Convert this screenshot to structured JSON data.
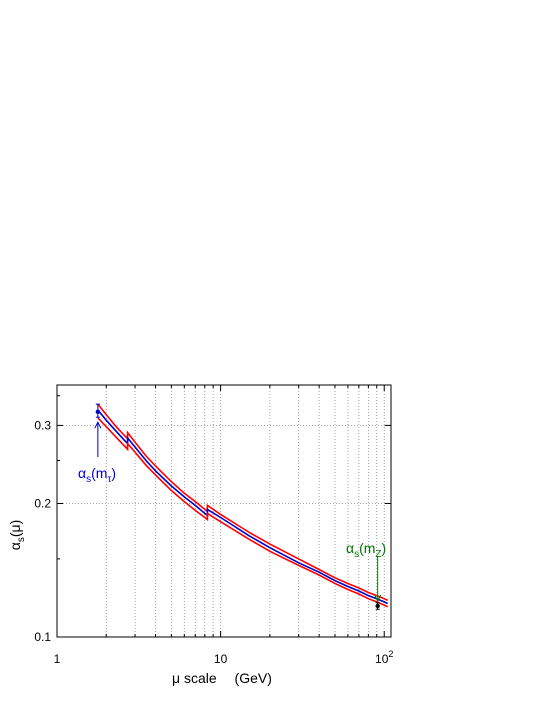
{
  "chart_data": {
    "type": "line",
    "x_scale": "log",
    "y_scale": "log",
    "xlim": [
      1,
      110
    ],
    "ylim": [
      0.1,
      0.37
    ],
    "grid": "x-minor and y-major, dotted",
    "xlabel": "μ scale",
    "xlabel_unit": "(GeV)",
    "ylabel": {
      "base": "α",
      "sub": "s",
      "rest": "(μ)"
    },
    "x_ticks": [
      {
        "value": 1,
        "label": "1"
      },
      {
        "value": 10,
        "label": "10"
      },
      {
        "value": 100,
        "label": "10",
        "sup": "2"
      }
    ],
    "y_ticks": [
      {
        "value": 0.1,
        "label": "0.1"
      },
      {
        "value": 0.2,
        "label": "0.2"
      },
      {
        "value": 0.3,
        "label": "0.3"
      }
    ],
    "series": [
      {
        "color": "#ff0000",
        "role": "upper band",
        "segments": [
          {
            "x": [
              1.777,
              2.0,
              2.3,
              2.6,
              2.7
            ],
            "y": [
              0.335,
              0.317,
              0.298,
              0.284,
              0.28
            ]
          },
          {
            "x": [
              2.7,
              3.0,
              3.5,
              4.0,
              5.0,
              6.0,
              7.0,
              8.0,
              8.3
            ],
            "y": [
              0.289,
              0.275,
              0.256,
              0.243,
              0.224,
              0.211,
              0.202,
              0.194,
              0.192
            ]
          },
          {
            "x": [
              8.3,
              10,
              15,
              20,
              30,
              40,
              50,
              60,
              70,
              80,
              90,
              100,
              105
            ],
            "y": [
              0.198,
              0.189,
              0.172,
              0.162,
              0.15,
              0.142,
              0.136,
              0.132,
              0.129,
              0.126,
              0.124,
              0.122,
              0.121
            ]
          }
        ]
      },
      {
        "color": "#0000cc",
        "role": "central value",
        "segments": [
          {
            "x": [
              1.777,
              2.0,
              2.3,
              2.6,
              2.7
            ],
            "y": [
              0.325,
              0.308,
              0.291,
              0.277,
              0.273
            ]
          },
          {
            "x": [
              2.7,
              3.0,
              3.5,
              4.0,
              5.0,
              6.0,
              7.0,
              8.0,
              8.3
            ],
            "y": [
              0.281,
              0.268,
              0.25,
              0.237,
              0.219,
              0.207,
              0.198,
              0.19,
              0.188
            ]
          },
          {
            "x": [
              8.3,
              10,
              15,
              20,
              30,
              40,
              50,
              60,
              70,
              80,
              90,
              100,
              105
            ],
            "y": [
              0.194,
              0.186,
              0.169,
              0.159,
              0.147,
              0.14,
              0.134,
              0.13,
              0.127,
              0.124,
              0.122,
              0.12,
              0.119
            ]
          }
        ]
      },
      {
        "color": "#ff0000",
        "role": "lower band",
        "segments": [
          {
            "x": [
              1.777,
              2.0,
              2.3,
              2.6,
              2.7
            ],
            "y": [
              0.312,
              0.298,
              0.282,
              0.269,
              0.265
            ]
          },
          {
            "x": [
              2.7,
              3.0,
              3.5,
              4.0,
              5.0,
              6.0,
              7.0,
              8.0,
              8.3
            ],
            "y": [
              0.273,
              0.261,
              0.244,
              0.232,
              0.214,
              0.202,
              0.193,
              0.186,
              0.184
            ]
          },
          {
            "x": [
              8.3,
              10,
              15,
              20,
              30,
              40,
              50,
              60,
              70,
              80,
              90,
              100,
              105
            ],
            "y": [
              0.19,
              0.182,
              0.166,
              0.156,
              0.145,
              0.138,
              0.132,
              0.128,
              0.125,
              0.122,
              0.12,
              0.118,
              0.117
            ]
          }
        ]
      }
    ],
    "points": [
      {
        "name": "mtau",
        "x": 1.777,
        "y": 0.322,
        "yerr": [
          0.313,
          0.335
        ],
        "color": "#0000cc"
      },
      {
        "name": "mz",
        "x": 91.19,
        "y": 0.1175,
        "yerr": [
          0.1155,
          0.1195
        ],
        "color": "#000000"
      }
    ],
    "annotations": [
      {
        "name": "mtau",
        "color": "#0000cc",
        "text": {
          "base": "α",
          "sub": "s",
          "rest": "(m",
          "sub2": "τ",
          "close": ")"
        },
        "arrow_to": {
          "x": 1.777,
          "y": 0.305
        }
      },
      {
        "name": "mz",
        "color": "#007700",
        "text": {
          "base": "α",
          "sub": "s",
          "rest": "(m",
          "sub2": "Z",
          "close": ")"
        },
        "arrow_to": {
          "x": 91.19,
          "y": 0.1205
        }
      }
    ]
  }
}
